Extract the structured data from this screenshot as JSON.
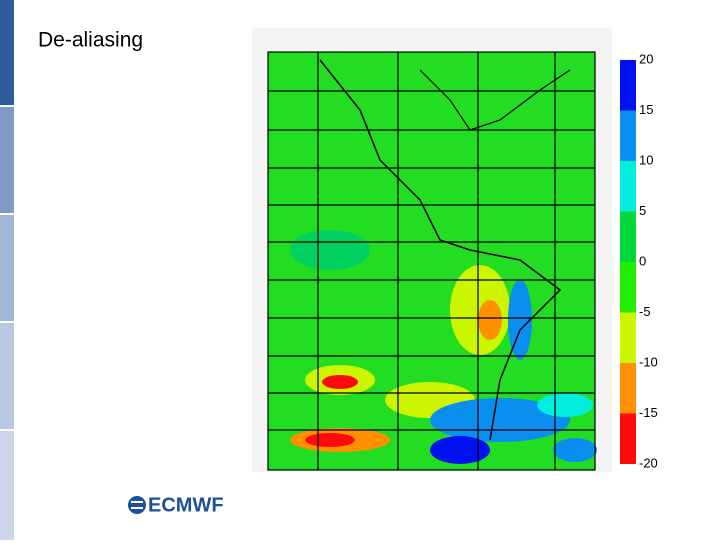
{
  "title": "De-aliasing",
  "colorbar": {
    "ticks": [
      20,
      15,
      10,
      5,
      0,
      -5,
      -10,
      -15,
      -20
    ],
    "colors": [
      "#0010f0",
      "#0a8ef0",
      "#00eedd",
      "#00d838",
      "#22ee00",
      "#ccf500",
      "#ff9000",
      "#ff0a0a"
    ]
  },
  "logo": "ECMWF"
}
